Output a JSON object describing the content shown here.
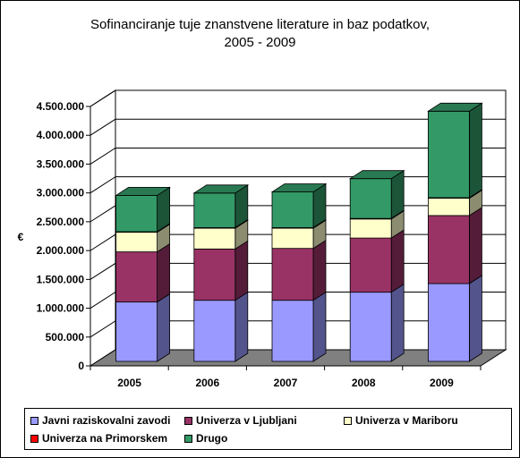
{
  "chart_data": {
    "type": "bar",
    "stacked": true,
    "three_d": true,
    "title": "Sofinanciranje tuje znanstvene literature in baz podatkov,\n2005 - 2009",
    "ylabel": "€",
    "xlabel": "",
    "categories": [
      "2005",
      "2006",
      "2007",
      "2008",
      "2009"
    ],
    "ylim": [
      0,
      4500000
    ],
    "y_ticks": [
      "0",
      "500.000",
      "1.000.000",
      "1.500.000",
      "2.000.000",
      "2.500.000",
      "3.000.000",
      "3.500.000",
      "4.000.000",
      "4.500.000"
    ],
    "grid": true,
    "legend_position": "bottom",
    "series": [
      {
        "name": "Javni raziskovalni zavodi",
        "color": "#9999FF",
        "values": [
          1030000,
          1060000,
          1060000,
          1200000,
          1350000
        ]
      },
      {
        "name": "Univerza v Ljubljani",
        "color": "#993366",
        "values": [
          870000,
          890000,
          900000,
          940000,
          1180000
        ]
      },
      {
        "name": "Univerza v Mariboru",
        "color": "#FFFFCC",
        "values": [
          340000,
          360000,
          350000,
          330000,
          300000
        ]
      },
      {
        "name": "Univerza na Primorskem",
        "color": "#FF0000",
        "values": [
          10000,
          10000,
          10000,
          10000,
          10000
        ]
      },
      {
        "name": "Drugo",
        "color": "#339966",
        "values": [
          630000,
          600000,
          620000,
          690000,
          1500000
        ]
      }
    ]
  }
}
